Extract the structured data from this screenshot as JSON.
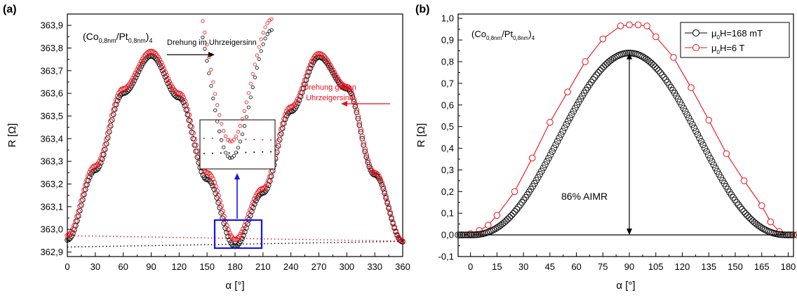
{
  "chart_data": [
    {
      "panel_label": "(a)",
      "type": "scatter",
      "xlabel": "α [°]",
      "ylabel": "R [Ω]",
      "xlim": [
        0,
        360
      ],
      "ylim": [
        362.88,
        363.95
      ],
      "xticks": [
        0,
        30,
        60,
        90,
        120,
        150,
        180,
        210,
        240,
        270,
        300,
        330,
        360
      ],
      "yticks": [
        "362,9",
        "363,0",
        "363,1",
        "363,2",
        "363,3",
        "363,4",
        "363,5",
        "363,6",
        "363,7",
        "363,8",
        "363,9"
      ],
      "sample_title": "(Co0,8nm/Pt0,8nm)4",
      "annotations": [
        "Drehung im Uhrzeigersinn",
        "Drehung gegen",
        "Uhrzeigersinn"
      ],
      "series": [
        {
          "color": "#000000",
          "marker": "open-circle",
          "points": [
            [
              0,
              362.953
            ],
            [
              30,
              363.26
            ],
            [
              60,
              363.6
            ],
            [
              90,
              363.765
            ],
            [
              120,
              363.58
            ],
            [
              150,
              363.22
            ],
            [
              180,
              362.925
            ],
            [
              210,
              363.16
            ],
            [
              240,
              363.52
            ],
            [
              270,
              363.76
            ],
            [
              300,
              363.62
            ],
            [
              330,
              363.24
            ],
            [
              360,
              362.945
            ]
          ],
          "baseline": [
            [
              0,
              362.922
            ],
            [
              360,
              362.947
            ]
          ]
        },
        {
          "color": "#e8101a",
          "marker": "open-circle",
          "points": [
            [
              0,
              362.972
            ],
            [
              30,
              363.28
            ],
            [
              60,
              363.62
            ],
            [
              90,
              363.785
            ],
            [
              120,
              363.6
            ],
            [
              150,
              363.25
            ],
            [
              180,
              362.955
            ],
            [
              210,
              363.18
            ],
            [
              240,
              363.54
            ],
            [
              270,
              363.775
            ],
            [
              300,
              363.63
            ],
            [
              330,
              363.25
            ],
            [
              360,
              362.948
            ]
          ],
          "baseline": [
            [
              0,
              362.972
            ],
            [
              360,
              362.948
            ]
          ]
        }
      ]
    },
    {
      "panel_label": "(b)",
      "type": "line",
      "xlabel": "α [°]",
      "ylabel": "R [Ω]",
      "xlim": [
        -7,
        183
      ],
      "ylim": [
        -0.1,
        1.02
      ],
      "xticks": [
        0,
        15,
        30,
        45,
        60,
        75,
        90,
        105,
        120,
        135,
        150,
        165,
        180
      ],
      "yticks": [
        "-0,1",
        "0,0",
        "0,1",
        "0,2",
        "0,3",
        "0,4",
        "0,5",
        "0,6",
        "0,7",
        "0,8",
        "0,9",
        "1,0"
      ],
      "sample_title": "(Co0,8nm/Pt0,8nm)4",
      "annotation": "86% AIMR",
      "legend_position": "top-right",
      "series": [
        {
          "name": "μ0H=168 mT",
          "color": "#000000",
          "marker": "open-circle",
          "peak": 0.84,
          "x_start": -7,
          "x_end": 183,
          "n_points": 190
        },
        {
          "name": "μ0H=6 T",
          "color": "#e8101a",
          "marker": "open-circle",
          "x": [
            -5,
            0,
            5,
            10,
            15,
            25,
            35,
            45,
            55,
            65,
            75,
            85,
            90,
            95,
            100,
            105,
            115,
            125,
            135,
            145,
            155,
            165,
            170,
            175,
            180,
            185
          ],
          "y": [
            0.0,
            0.005,
            0.02,
            0.045,
            0.09,
            0.2,
            0.355,
            0.52,
            0.66,
            0.8,
            0.905,
            0.965,
            0.97,
            0.97,
            0.965,
            0.915,
            0.82,
            0.68,
            0.53,
            0.375,
            0.25,
            0.135,
            0.06,
            0.015,
            0.0,
            0.0
          ]
        }
      ]
    }
  ]
}
